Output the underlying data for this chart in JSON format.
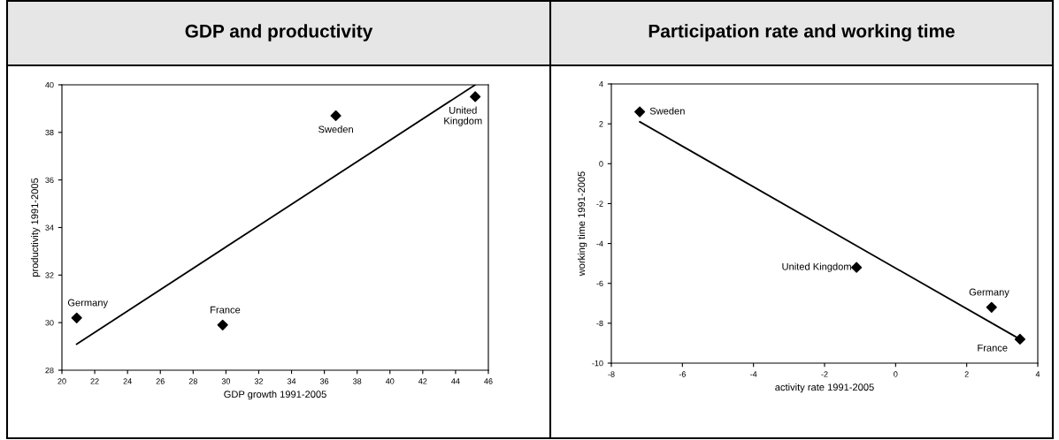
{
  "chart_data": [
    {
      "type": "scatter",
      "title": "GDP and productivity",
      "xlabel": "GDP growth 1991-2005",
      "ylabel": "productivity 1991-2005",
      "xlim": [
        20,
        46
      ],
      "xticks": [
        20,
        22,
        24,
        26,
        28,
        30,
        32,
        34,
        36,
        38,
        40,
        42,
        44,
        46
      ],
      "ylim": [
        28,
        40
      ],
      "yticks": [
        28,
        30,
        32,
        34,
        36,
        38,
        40
      ],
      "grid": false,
      "marker": "diamond",
      "series": [
        {
          "color": "#000000",
          "x": [
            20.9,
            29.8,
            36.7,
            45.2
          ],
          "values": [
            30.2,
            29.9,
            38.7,
            39.5
          ]
        },
        {
          "type": "line",
          "color": "#000000",
          "marker": "none",
          "line_style": "solid",
          "x": [
            20.9,
            45.2
          ],
          "values": [
            29.1,
            40.0
          ]
        }
      ],
      "annotations": [
        {
          "text": "Germany",
          "x": 20.9,
          "y": 30.2
        },
        {
          "text": "France",
          "x": 29.8,
          "y": 29.9
        },
        {
          "text": "Sweden",
          "x": 36.7,
          "y": 38.7
        },
        {
          "text": "United\nKingdom",
          "x": 45.2,
          "y": 39.5
        }
      ]
    },
    {
      "type": "scatter",
      "title": "Participation rate and working time",
      "xlabel": "activity rate 1991-2005",
      "ylabel": "working time 1991-2005",
      "xlim": [
        -8,
        4
      ],
      "xticks": [
        -8,
        -6,
        -4,
        -2,
        0,
        2,
        4
      ],
      "ylim": [
        -10,
        4
      ],
      "yticks": [
        -10,
        -8,
        -6,
        -4,
        -2,
        0,
        2,
        4
      ],
      "grid": false,
      "marker": "diamond",
      "series": [
        {
          "color": "#000000",
          "x": [
            -7.2,
            -1.1,
            2.7,
            3.5
          ],
          "values": [
            2.6,
            -5.2,
            -7.2,
            -8.8
          ]
        },
        {
          "type": "line",
          "color": "#000000",
          "marker": "none",
          "line_style": "solid",
          "x": [
            -7.2,
            3.5
          ],
          "values": [
            2.1,
            -8.8
          ]
        }
      ],
      "annotations": [
        {
          "text": "Sweden",
          "x": -7.2,
          "y": 2.6
        },
        {
          "text": "United Kingdom",
          "x": -1.1,
          "y": -5.2
        },
        {
          "text": "Germany",
          "x": 2.7,
          "y": -7.2
        },
        {
          "text": "France",
          "x": 3.5,
          "y": -8.8
        }
      ]
    }
  ]
}
